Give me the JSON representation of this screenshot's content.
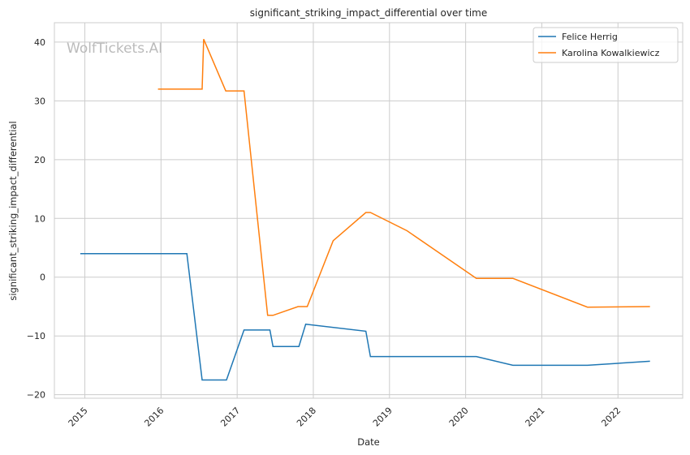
{
  "chart_data": {
    "type": "line",
    "title": "significant_striking_impact_differential over time",
    "xlabel": "Date",
    "ylabel": "significant_striking_impact_differential",
    "xlim": [
      2014.6,
      2022.85
    ],
    "ylim": [
      -20.6,
      43.3
    ],
    "x_ticks": [
      2015,
      2016,
      2017,
      2018,
      2019,
      2020,
      2021,
      2022
    ],
    "x_tick_labels": [
      "2015",
      "2016",
      "2017",
      "2018",
      "2019",
      "2020",
      "2021",
      "2022"
    ],
    "y_ticks": [
      -20,
      -10,
      0,
      10,
      20,
      30,
      40
    ],
    "y_tick_labels": [
      "−20",
      "−10",
      "0",
      "10",
      "20",
      "30",
      "40"
    ],
    "grid": true,
    "legend_position": "top-right",
    "watermark": "WolfTickets.AI",
    "series": [
      {
        "name": "Felice Herrig",
        "color": "#1f77b4",
        "x": [
          2014.94,
          2016.34,
          2016.54,
          2016.86,
          2017.09,
          2017.43,
          2017.47,
          2017.81,
          2017.9,
          2018.69,
          2018.75,
          2020.14,
          2020.62,
          2021.6,
          2022.42
        ],
        "values": [
          4,
          4,
          -17.5,
          -17.5,
          -9,
          -9,
          -11.8,
          -11.8,
          -8,
          -9.2,
          -13.5,
          -13.5,
          -15,
          -15,
          -14.3
        ]
      },
      {
        "name": "Karolina Kowalkiewicz",
        "color": "#ff7f0e",
        "x": [
          2015.96,
          2016.54,
          2016.56,
          2016.85,
          2017.09,
          2017.4,
          2017.47,
          2017.8,
          2017.92,
          2018.26,
          2018.69,
          2018.75,
          2019.23,
          2020.14,
          2020.62,
          2021.6,
          2022.42
        ],
        "values": [
          32,
          32,
          40.5,
          31.7,
          31.7,
          -6.5,
          -6.5,
          -5,
          -5,
          6.2,
          11,
          11,
          7.9,
          -0.2,
          -0.2,
          -5.1,
          -5
        ]
      }
    ]
  }
}
